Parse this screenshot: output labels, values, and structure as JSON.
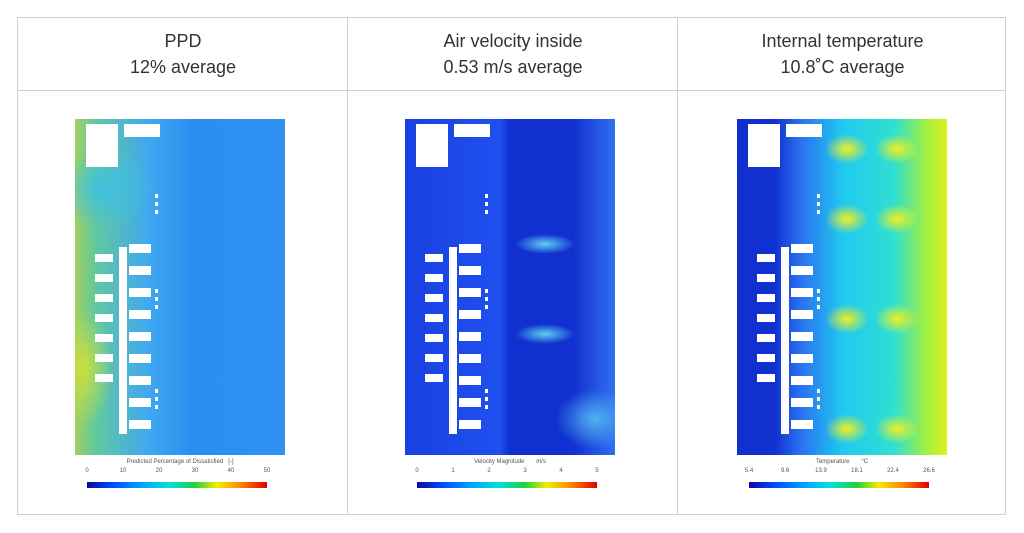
{
  "columns": [
    {
      "title": "PPD",
      "subtitle": "12% average",
      "colorbar": {
        "label": "Predicted Percentage of Dissatisfied",
        "unit": "[-]",
        "ticks": [
          "0",
          "10",
          "20",
          "30",
          "40",
          "50"
        ]
      }
    },
    {
      "title": "Air velocity inside",
      "subtitle": "0.53 m/s average",
      "colorbar": {
        "label": "Velocity Magnitude",
        "unit": "m/s",
        "ticks": [
          "0",
          "1",
          "2",
          "3",
          "4",
          "5"
        ]
      }
    },
    {
      "title": "Internal temperature",
      "subtitle": "10.8˚C average",
      "colorbar": {
        "label": "Temperature",
        "unit": "°C",
        "ticks": [
          "5.4",
          "9.6",
          "13.9",
          "18.1",
          "22.4",
          "26.6"
        ]
      }
    }
  ],
  "colormap": [
    "#0a0aa0",
    "#0050ff",
    "#00a0ff",
    "#00e0e0",
    "#20d040",
    "#f0f000",
    "#ff8000",
    "#e00000"
  ]
}
